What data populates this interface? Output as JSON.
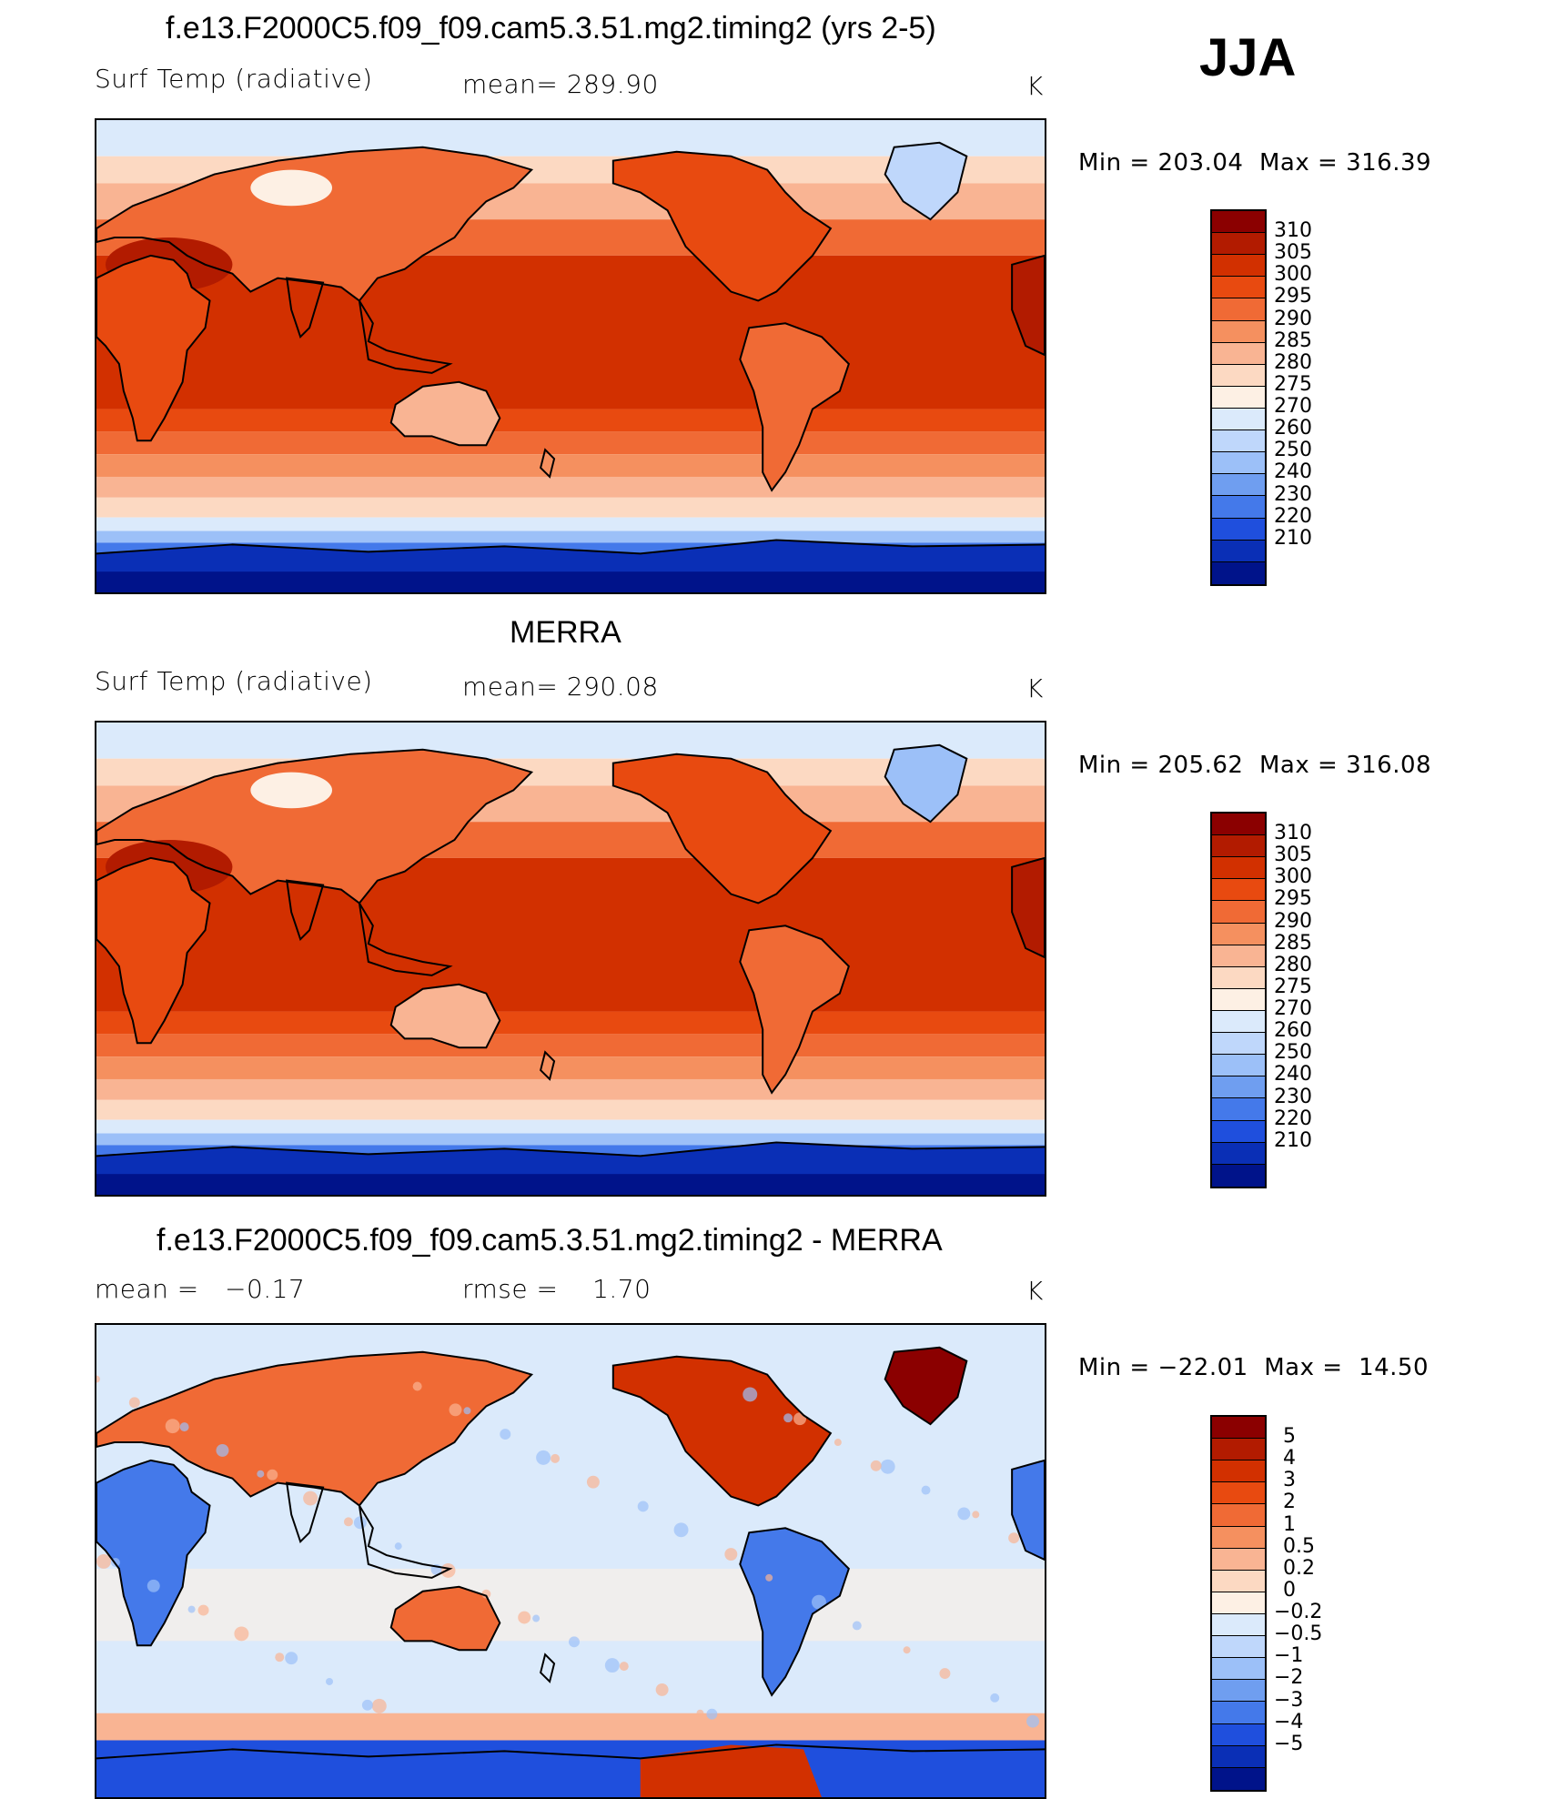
{
  "season": "JJA",
  "panels": [
    {
      "id": "model",
      "title": "f.e13.F2000C5.f09_f09.cam5.3.51.mg2.timing2 (yrs 2-5)",
      "variable": "Surf Temp (radiative)",
      "stat_label": "mean=",
      "stat_value": "289.90",
      "stat2_label": "",
      "stat2_value": "",
      "units": "K",
      "min_label": "Min",
      "min_value": "203.04",
      "max_label": "Max",
      "max_value": "316.39",
      "colorbar": {
        "levels": [
          "310",
          "305",
          "300",
          "295",
          "290",
          "285",
          "280",
          "275",
          "270",
          "260",
          "250",
          "240",
          "230",
          "220",
          "210"
        ],
        "colors": [
          "#8b0000",
          "#b21b00",
          "#d23000",
          "#e84a10",
          "#f06a35",
          "#f5905f",
          "#f9b493",
          "#fcd9c2",
          "#fdf0e4",
          "#dbeafb",
          "#bfd7fb",
          "#9cc0f8",
          "#6f9ef0",
          "#4479ea",
          "#1f4fdd",
          "#0a2fb6",
          "#00138a"
        ]
      },
      "map_scheme": "warm"
    },
    {
      "id": "obs",
      "title": "MERRA",
      "variable": "Surf Temp (radiative)",
      "stat_label": "mean=",
      "stat_value": "290.08",
      "stat2_label": "",
      "stat2_value": "",
      "units": "K",
      "min_label": "Min",
      "min_value": "205.62",
      "max_label": "Max",
      "max_value": "316.08",
      "colorbar": {
        "levels": [
          "310",
          "305",
          "300",
          "295",
          "290",
          "285",
          "280",
          "275",
          "270",
          "260",
          "250",
          "240",
          "230",
          "220",
          "210"
        ],
        "colors": [
          "#8b0000",
          "#b21b00",
          "#d23000",
          "#e84a10",
          "#f06a35",
          "#f5905f",
          "#f9b493",
          "#fcd9c2",
          "#fdf0e4",
          "#dbeafb",
          "#bfd7fb",
          "#9cc0f8",
          "#6f9ef0",
          "#4479ea",
          "#1f4fdd",
          "#0a2fb6",
          "#00138a"
        ]
      },
      "map_scheme": "warm"
    },
    {
      "id": "diff",
      "title": "f.e13.F2000C5.f09_f09.cam5.3.51.mg2.timing2 - MERRA",
      "variable": "",
      "stat_label": "mean =",
      "stat_value": "−0.17",
      "stat2_label": "rmse =",
      "stat2_value": "1.70",
      "units": "K",
      "min_label": "Min",
      "min_value": "−22.01",
      "max_label": "Max",
      "max_value": "14.50",
      "colorbar": {
        "levels": [
          "5",
          "4",
          "3",
          "2",
          "1",
          "0.5",
          "0.2",
          "0",
          "−0.2",
          "−0.5",
          "−1",
          "−2",
          "−3",
          "−4",
          "−5"
        ],
        "colors": [
          "#8b0000",
          "#b21b00",
          "#d23000",
          "#e84a10",
          "#f06a35",
          "#f5905f",
          "#f9b493",
          "#fcd9c2",
          "#fdf0e4",
          "#dbeafb",
          "#bfd7fb",
          "#9cc0f8",
          "#6f9ef0",
          "#4479ea",
          "#1f4fdd",
          "#0a2fb6",
          "#00138a"
        ]
      },
      "map_scheme": "diff"
    }
  ]
}
